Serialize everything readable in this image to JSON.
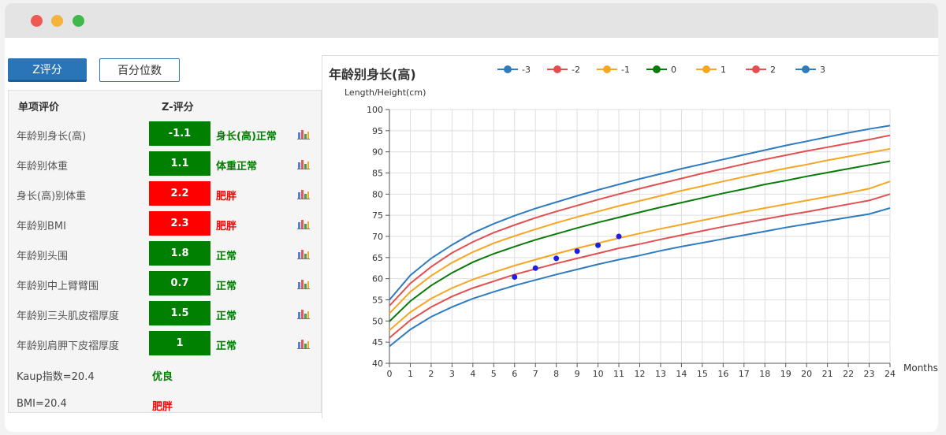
{
  "tabs": [
    {
      "label": "Z评分",
      "active": true
    },
    {
      "label": "百分位数",
      "active": false
    }
  ],
  "table": {
    "headers": {
      "item": "单项评价",
      "score": "Z-评分"
    },
    "rows": [
      {
        "label": "年龄别身长(高)",
        "score": "-1.1",
        "status": "身长(高)正常",
        "level": "normal"
      },
      {
        "label": "年龄别体重",
        "score": "1.1",
        "status": "体重正常",
        "level": "normal"
      },
      {
        "label": "身长(高)别体重",
        "score": "2.2",
        "status": "肥胖",
        "level": "abnormal"
      },
      {
        "label": "年龄别BMI",
        "score": "2.3",
        "status": "肥胖",
        "level": "abnormal"
      },
      {
        "label": "年龄别头围",
        "score": "1.8",
        "status": "正常",
        "level": "normal"
      },
      {
        "label": "年龄别中上臂臂围",
        "score": "0.7",
        "status": "正常",
        "level": "normal"
      },
      {
        "label": "年龄别三头肌皮褶厚度",
        "score": "1.5",
        "status": "正常",
        "level": "normal"
      },
      {
        "label": "年龄别肩胛下皮褶厚度",
        "score": "1",
        "status": "正常",
        "level": "normal"
      }
    ],
    "notes": [
      {
        "label": "Kaup指数=20.4",
        "status": "优良",
        "level": "normal"
      },
      {
        "label": "BMI=20.4",
        "status": "肥胖",
        "level": "abnormal"
      }
    ]
  },
  "colors": {
    "normal_bg": "#008000",
    "abnormal_bg": "#ff0000",
    "normal_text": "#008000",
    "abnormal_text": "#ff0000",
    "accent": "#2a75b8",
    "points": "#1f1fe0"
  },
  "icons": {
    "chart": "bar-chart-icon"
  },
  "chart_data": {
    "type": "line",
    "title": "年龄别身长(高)",
    "ylabel": "Length/Height(cm)",
    "xlabel": "Months",
    "xlim": [
      0,
      24
    ],
    "ylim": [
      40,
      100
    ],
    "xticks": [
      0,
      1,
      2,
      3,
      4,
      5,
      6,
      7,
      8,
      9,
      10,
      11,
      12,
      13,
      14,
      15,
      16,
      17,
      18,
      19,
      20,
      21,
      22,
      23,
      24
    ],
    "yticks": [
      40,
      45,
      50,
      55,
      60,
      65,
      70,
      75,
      80,
      85,
      90,
      95,
      100
    ],
    "grid": true,
    "legend_position": "top",
    "x": [
      0,
      1,
      2,
      3,
      4,
      5,
      6,
      7,
      8,
      9,
      10,
      11,
      12,
      13,
      14,
      15,
      16,
      17,
      18,
      19,
      20,
      21,
      22,
      23,
      24
    ],
    "series": [
      {
        "name": "-3",
        "color": "#2e7bbf",
        "values": [
          44.0,
          48.0,
          51.0,
          53.3,
          55.3,
          56.9,
          58.4,
          59.7,
          61.0,
          62.2,
          63.4,
          64.5,
          65.5,
          66.6,
          67.6,
          68.5,
          69.4,
          70.3,
          71.2,
          72.1,
          72.9,
          73.7,
          74.5,
          75.3,
          76.7
        ]
      },
      {
        "name": "-2",
        "color": "#e05050",
        "values": [
          46.0,
          50.2,
          53.3,
          55.8,
          57.8,
          59.4,
          61.0,
          62.3,
          63.6,
          64.8,
          66.0,
          67.2,
          68.2,
          69.3,
          70.3,
          71.3,
          72.3,
          73.2,
          74.1,
          75.0,
          75.8,
          76.7,
          77.6,
          78.5,
          80.0
        ]
      },
      {
        "name": "-1",
        "color": "#f5a623",
        "values": [
          47.8,
          52.1,
          55.3,
          57.8,
          59.8,
          61.5,
          63.1,
          64.5,
          65.9,
          67.2,
          68.4,
          69.6,
          70.7,
          71.8,
          72.8,
          73.8,
          74.8,
          75.8,
          76.7,
          77.6,
          78.5,
          79.4,
          80.3,
          81.3,
          83.0
        ]
      },
      {
        "name": "0",
        "color": "#0a7a0a",
        "values": [
          49.9,
          54.7,
          58.4,
          61.4,
          63.9,
          65.9,
          67.6,
          69.2,
          70.6,
          72.0,
          73.3,
          74.5,
          75.7,
          76.9,
          78.0,
          79.1,
          80.2,
          81.2,
          82.3,
          83.2,
          84.2,
          85.1,
          86.0,
          86.9,
          87.8
        ]
      },
      {
        "name": "1",
        "color": "#f5a623",
        "values": [
          51.8,
          56.9,
          60.7,
          63.8,
          66.3,
          68.4,
          70.1,
          71.7,
          73.2,
          74.6,
          75.9,
          77.2,
          78.4,
          79.6,
          80.8,
          81.9,
          83.0,
          84.1,
          85.1,
          86.1,
          87.0,
          88.0,
          88.9,
          89.8,
          90.7
        ]
      },
      {
        "name": "2",
        "color": "#e05050",
        "values": [
          53.6,
          58.9,
          62.8,
          66.1,
          68.7,
          70.9,
          72.7,
          74.4,
          75.9,
          77.3,
          78.7,
          80.0,
          81.3,
          82.5,
          83.7,
          84.9,
          86.0,
          87.1,
          88.2,
          89.2,
          90.2,
          91.1,
          92.0,
          92.9,
          93.9
        ]
      },
      {
        "name": "3",
        "color": "#2e7bbf",
        "values": [
          55.0,
          60.8,
          64.8,
          68.0,
          70.8,
          73.0,
          74.9,
          76.6,
          78.1,
          79.6,
          81.0,
          82.3,
          83.6,
          84.8,
          86.0,
          87.1,
          88.2,
          89.3,
          90.4,
          91.5,
          92.5,
          93.5,
          94.5,
          95.4,
          96.2
        ]
      }
    ],
    "points": [
      {
        "x": 6,
        "y": 60.4
      },
      {
        "x": 7,
        "y": 62.5
      },
      {
        "x": 8,
        "y": 64.8
      },
      {
        "x": 9,
        "y": 66.5
      },
      {
        "x": 10,
        "y": 67.9
      },
      {
        "x": 11,
        "y": 70.0
      }
    ]
  }
}
